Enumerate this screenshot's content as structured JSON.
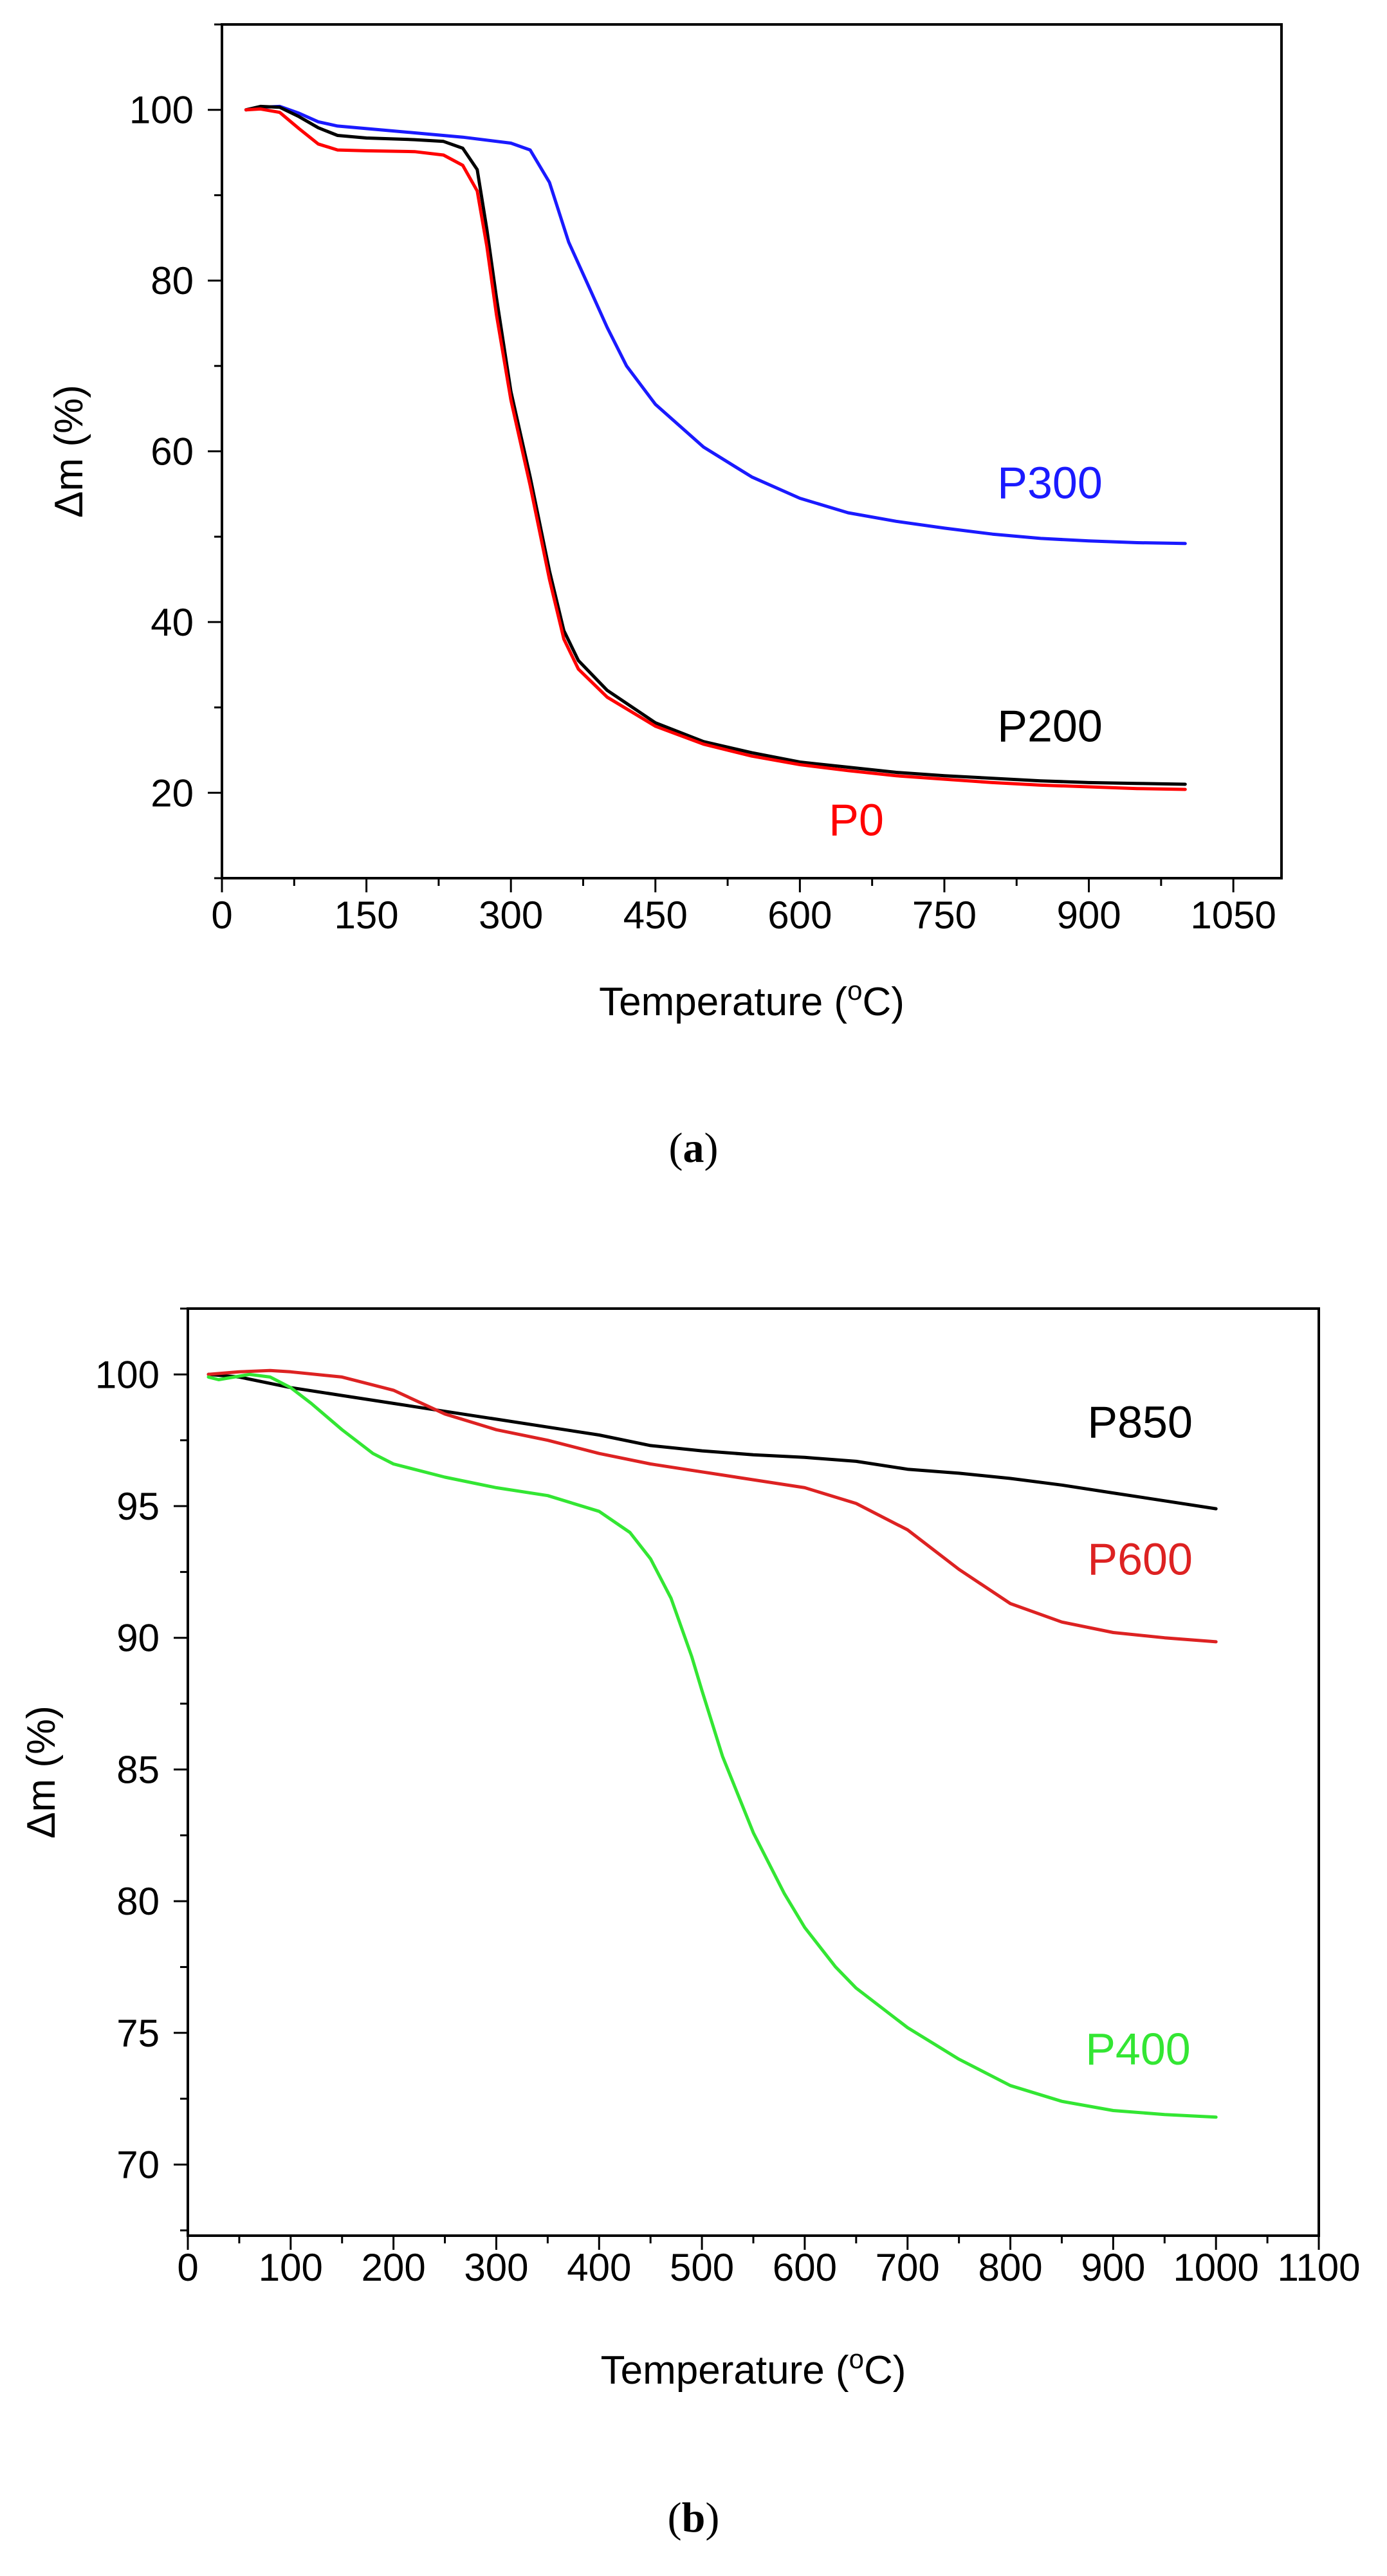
{
  "chart_data": [
    {
      "type": "line",
      "panel_caption": {
        "open": "(",
        "letter": "a",
        "close": ")"
      },
      "xlabel": "Temperature (",
      "xlabel_sup": "o",
      "xlabel_suffix": "C)",
      "ylabel": "Δm (%)",
      "xlim": [
        0,
        1100
      ],
      "ylim": [
        10,
        110
      ],
      "x_ticks": [
        0,
        150,
        300,
        450,
        600,
        750,
        900,
        1050
      ],
      "x_minor_step": 75,
      "y_ticks": [
        20,
        40,
        60,
        80,
        100
      ],
      "y_minor_step": 10,
      "series": [
        {
          "name": "P300",
          "color": "#1a1aff",
          "label_at": [
            805,
            54.5
          ],
          "points": [
            [
              25,
              100
            ],
            [
              40,
              100.3
            ],
            [
              60,
              100.4
            ],
            [
              80,
              99.6
            ],
            [
              100,
              98.6
            ],
            [
              120,
              98.1
            ],
            [
              150,
              97.8
            ],
            [
              200,
              97.3
            ],
            [
              250,
              96.8
            ],
            [
              300,
              96.1
            ],
            [
              320,
              95.3
            ],
            [
              340,
              91.5
            ],
            [
              360,
              84.5
            ],
            [
              380,
              79.5
            ],
            [
              400,
              74.5
            ],
            [
              420,
              70
            ],
            [
              450,
              65.5
            ],
            [
              500,
              60.5
            ],
            [
              550,
              57
            ],
            [
              600,
              54.5
            ],
            [
              650,
              52.8
            ],
            [
              700,
              51.8
            ],
            [
              750,
              51
            ],
            [
              800,
              50.3
            ],
            [
              850,
              49.8
            ],
            [
              900,
              49.5
            ],
            [
              950,
              49.3
            ],
            [
              1000,
              49.2
            ]
          ]
        },
        {
          "name": "P200",
          "color": "#000000",
          "label_at": [
            805,
            26
          ],
          "points": [
            [
              25,
              100
            ],
            [
              40,
              100.4
            ],
            [
              60,
              100.3
            ],
            [
              80,
              99.2
            ],
            [
              100,
              97.9
            ],
            [
              120,
              97
            ],
            [
              150,
              96.7
            ],
            [
              200,
              96.5
            ],
            [
              230,
              96.3
            ],
            [
              250,
              95.5
            ],
            [
              265,
              93
            ],
            [
              275,
              86
            ],
            [
              285,
              78
            ],
            [
              300,
              67
            ],
            [
              320,
              57
            ],
            [
              340,
              46
            ],
            [
              355,
              39
            ],
            [
              370,
              35.5
            ],
            [
              400,
              32
            ],
            [
              450,
              28.2
            ],
            [
              500,
              26
            ],
            [
              550,
              24.7
            ],
            [
              600,
              23.6
            ],
            [
              650,
              23
            ],
            [
              700,
              22.4
            ],
            [
              750,
              22
            ],
            [
              800,
              21.7
            ],
            [
              850,
              21.4
            ],
            [
              900,
              21.2
            ],
            [
              950,
              21.1
            ],
            [
              1000,
              21
            ]
          ]
        },
        {
          "name": "P0",
          "color": "#ff0000",
          "label_at": [
            630,
            15
          ],
          "points": [
            [
              25,
              100
            ],
            [
              40,
              100.1
            ],
            [
              60,
              99.7
            ],
            [
              80,
              97.8
            ],
            [
              100,
              96
            ],
            [
              120,
              95.3
            ],
            [
              150,
              95.2
            ],
            [
              200,
              95.1
            ],
            [
              230,
              94.7
            ],
            [
              250,
              93.5
            ],
            [
              265,
              90.5
            ],
            [
              275,
              84
            ],
            [
              285,
              76
            ],
            [
              300,
              66
            ],
            [
              320,
              56
            ],
            [
              340,
              45
            ],
            [
              355,
              38
            ],
            [
              370,
              34.5
            ],
            [
              400,
              31.2
            ],
            [
              450,
              27.8
            ],
            [
              500,
              25.7
            ],
            [
              550,
              24.3
            ],
            [
              600,
              23.3
            ],
            [
              650,
              22.6
            ],
            [
              700,
              22
            ],
            [
              750,
              21.6
            ],
            [
              800,
              21.2
            ],
            [
              850,
              20.9
            ],
            [
              900,
              20.7
            ],
            [
              950,
              20.5
            ],
            [
              1000,
              20.4
            ]
          ]
        }
      ]
    },
    {
      "type": "line",
      "panel_caption": {
        "open": "(",
        "letter": "b",
        "close": ")"
      },
      "xlabel": "Temperature (",
      "xlabel_sup": "o",
      "xlabel_suffix": "C)",
      "ylabel": "Δm (%)",
      "xlim": [
        0,
        1100
      ],
      "ylim": [
        67.3,
        102.5
      ],
      "x_ticks": [
        0,
        100,
        200,
        300,
        400,
        500,
        600,
        700,
        800,
        900,
        1000,
        1100
      ],
      "x_minor_step": 50,
      "y_ticks": [
        70,
        75,
        80,
        85,
        90,
        95,
        100
      ],
      "y_minor_step": 2.5,
      "series": [
        {
          "name": "P850",
          "color": "#000000",
          "label_at": [
            875,
            97.6
          ],
          "points": [
            [
              20,
              100
            ],
            [
              50,
              99.9
            ],
            [
              100,
              99.5
            ],
            [
              150,
              99.2
            ],
            [
              200,
              98.9
            ],
            [
              250,
              98.6
            ],
            [
              300,
              98.3
            ],
            [
              350,
              98
            ],
            [
              400,
              97.7
            ],
            [
              450,
              97.3
            ],
            [
              500,
              97.1
            ],
            [
              550,
              96.95
            ],
            [
              600,
              96.85
            ],
            [
              650,
              96.7
            ],
            [
              700,
              96.4
            ],
            [
              750,
              96.25
            ],
            [
              800,
              96.05
            ],
            [
              850,
              95.8
            ],
            [
              900,
              95.5
            ],
            [
              950,
              95.2
            ],
            [
              1000,
              94.9
            ]
          ]
        },
        {
          "name": "P600",
          "color": "#dd2222",
          "label_at": [
            875,
            92.4
          ],
          "points": [
            [
              20,
              100
            ],
            [
              50,
              100.1
            ],
            [
              80,
              100.15
            ],
            [
              100,
              100.1
            ],
            [
              150,
              99.9
            ],
            [
              200,
              99.4
            ],
            [
              250,
              98.5
            ],
            [
              300,
              97.9
            ],
            [
              350,
              97.5
            ],
            [
              400,
              97
            ],
            [
              450,
              96.6
            ],
            [
              500,
              96.3
            ],
            [
              550,
              96
            ],
            [
              600,
              95.7
            ],
            [
              650,
              95.1
            ],
            [
              700,
              94.1
            ],
            [
              750,
              92.6
            ],
            [
              800,
              91.3
            ],
            [
              850,
              90.6
            ],
            [
              900,
              90.2
            ],
            [
              950,
              90
            ],
            [
              1000,
              89.85
            ]
          ]
        },
        {
          "name": "P400",
          "color": "#33e633",
          "label_at": [
            873,
            73.8
          ],
          "points": [
            [
              20,
              99.9
            ],
            [
              30,
              99.8
            ],
            [
              45,
              99.9
            ],
            [
              60,
              100
            ],
            [
              80,
              99.9
            ],
            [
              100,
              99.5
            ],
            [
              120,
              98.9
            ],
            [
              150,
              97.9
            ],
            [
              180,
              97
            ],
            [
              200,
              96.6
            ],
            [
              250,
              96.1
            ],
            [
              300,
              95.7
            ],
            [
              350,
              95.4
            ],
            [
              400,
              94.8
            ],
            [
              430,
              94
            ],
            [
              450,
              93
            ],
            [
              470,
              91.5
            ],
            [
              490,
              89.3
            ],
            [
              500,
              88
            ],
            [
              520,
              85.5
            ],
            [
              550,
              82.6
            ],
            [
              580,
              80.3
            ],
            [
              600,
              79
            ],
            [
              630,
              77.5
            ],
            [
              650,
              76.7
            ],
            [
              700,
              75.2
            ],
            [
              750,
              74
            ],
            [
              800,
              73
            ],
            [
              850,
              72.4
            ],
            [
              900,
              72.05
            ],
            [
              950,
              71.9
            ],
            [
              1000,
              71.8
            ]
          ]
        }
      ]
    }
  ]
}
